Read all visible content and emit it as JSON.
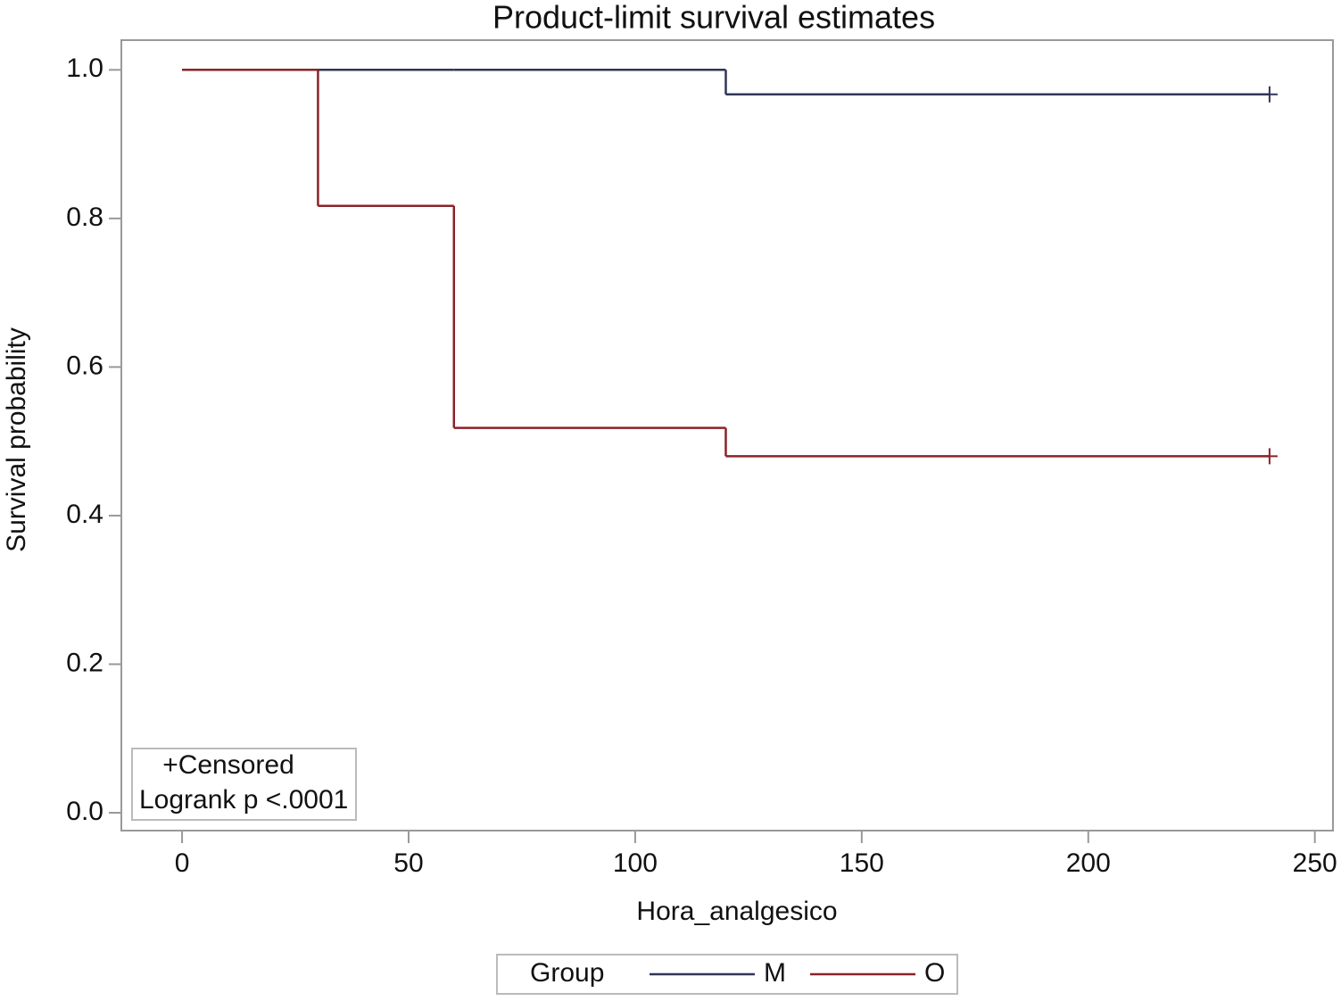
{
  "chart_data": {
    "type": "step",
    "title": "Product-limit survival estimates",
    "xlabel": "Hora_analgesico",
    "ylabel": "Survival probability",
    "x": [
      0,
      30,
      60,
      120,
      240
    ],
    "series": [
      {
        "name": "M",
        "color": "#2f3659",
        "values": [
          1,
          1,
          1,
          0.967,
          0.967
        ],
        "censored": [
          240
        ]
      },
      {
        "name": "O",
        "color": "#8a2328",
        "values": [
          1,
          0.817,
          0.518,
          0.48,
          0.48
        ],
        "censored": [
          240
        ]
      }
    ],
    "xlim": [
      -13.4,
      254
    ],
    "ylim": [
      -0.024,
      1.04
    ],
    "xticks": [
      0,
      50,
      100,
      150,
      200,
      250
    ],
    "yticks": [
      {
        "value": 0,
        "label": "0.0"
      },
      {
        "value": 0.2,
        "label": "0.2"
      },
      {
        "value": 0.4,
        "label": "0.4"
      },
      {
        "value": 0.6,
        "label": "0.6"
      },
      {
        "value": 0.8,
        "label": "0.8"
      },
      {
        "value": 1,
        "label": "1.0"
      }
    ],
    "annotations": [
      "+Censored",
      "Logrank p <.0001"
    ],
    "legend_title": "Group",
    "legend": "bottom",
    "grid": false
  }
}
